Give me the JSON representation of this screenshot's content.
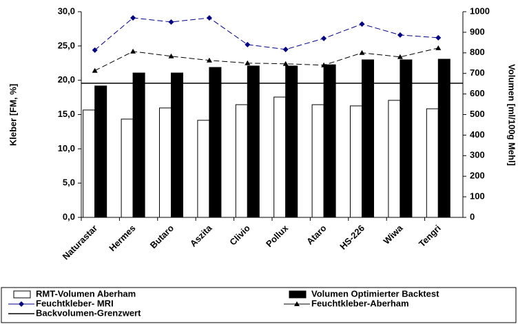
{
  "chart_data": {
    "type": "bar",
    "categories": [
      "Naturastar",
      "Hermes",
      "Butaro",
      "Aszita",
      "Clivio",
      "Pollux",
      "Ataro",
      "HS-226",
      "Wiwa",
      "Tengri"
    ],
    "y_label": "Kleber [FM, %]",
    "y2_label": "Volumen [ml/100g Mehl]",
    "ylim": [
      0,
      30
    ],
    "yticks": [
      {
        "value": 0,
        "label": "0,0"
      },
      {
        "value": 5,
        "label": "5,0"
      },
      {
        "value": 10,
        "label": "10,0"
      },
      {
        "value": 15,
        "label": "15,0"
      },
      {
        "value": 20,
        "label": "20,0"
      },
      {
        "value": 25,
        "label": "25,0"
      },
      {
        "value": 30,
        "label": "30,0"
      }
    ],
    "y2lim": [
      0,
      1000
    ],
    "y2ticks": [
      0,
      100,
      200,
      300,
      400,
      500,
      600,
      700,
      800,
      900,
      1000
    ],
    "series": [
      {
        "name": "RMT-Volumen Aberham",
        "type": "bar",
        "axis": "y2",
        "color": "#ffffff",
        "values": [
          522,
          478,
          532,
          472,
          548,
          585,
          548,
          542,
          569,
          528
        ]
      },
      {
        "name": "Volumen Optimierter Backtest",
        "type": "bar",
        "axis": "y2",
        "color": "#000000",
        "values": [
          639,
          702,
          702,
          729,
          736,
          736,
          742,
          766,
          766,
          769
        ]
      },
      {
        "name": "Feuchtkleber- MRI",
        "type": "line",
        "axis": "y",
        "color": "#000080",
        "marker": "diamond",
        "dashed": true,
        "values": [
          24.4,
          29.1,
          28.5,
          29.1,
          25.2,
          24.5,
          26.1,
          28.2,
          26.6,
          26.2
        ]
      },
      {
        "name": "Feuchtkleber-Aberham",
        "type": "line",
        "axis": "y",
        "color": "#000000",
        "marker": "triangle",
        "dashed": true,
        "values": [
          21.4,
          24.2,
          23.5,
          22.9,
          22.5,
          22.4,
          22.2,
          24.0,
          23.4,
          24.7
        ]
      }
    ],
    "reference_line": {
      "name": "Backvolumen-Grenzwert",
      "axis": "y2",
      "color": "#000000",
      "value": 652
    }
  }
}
